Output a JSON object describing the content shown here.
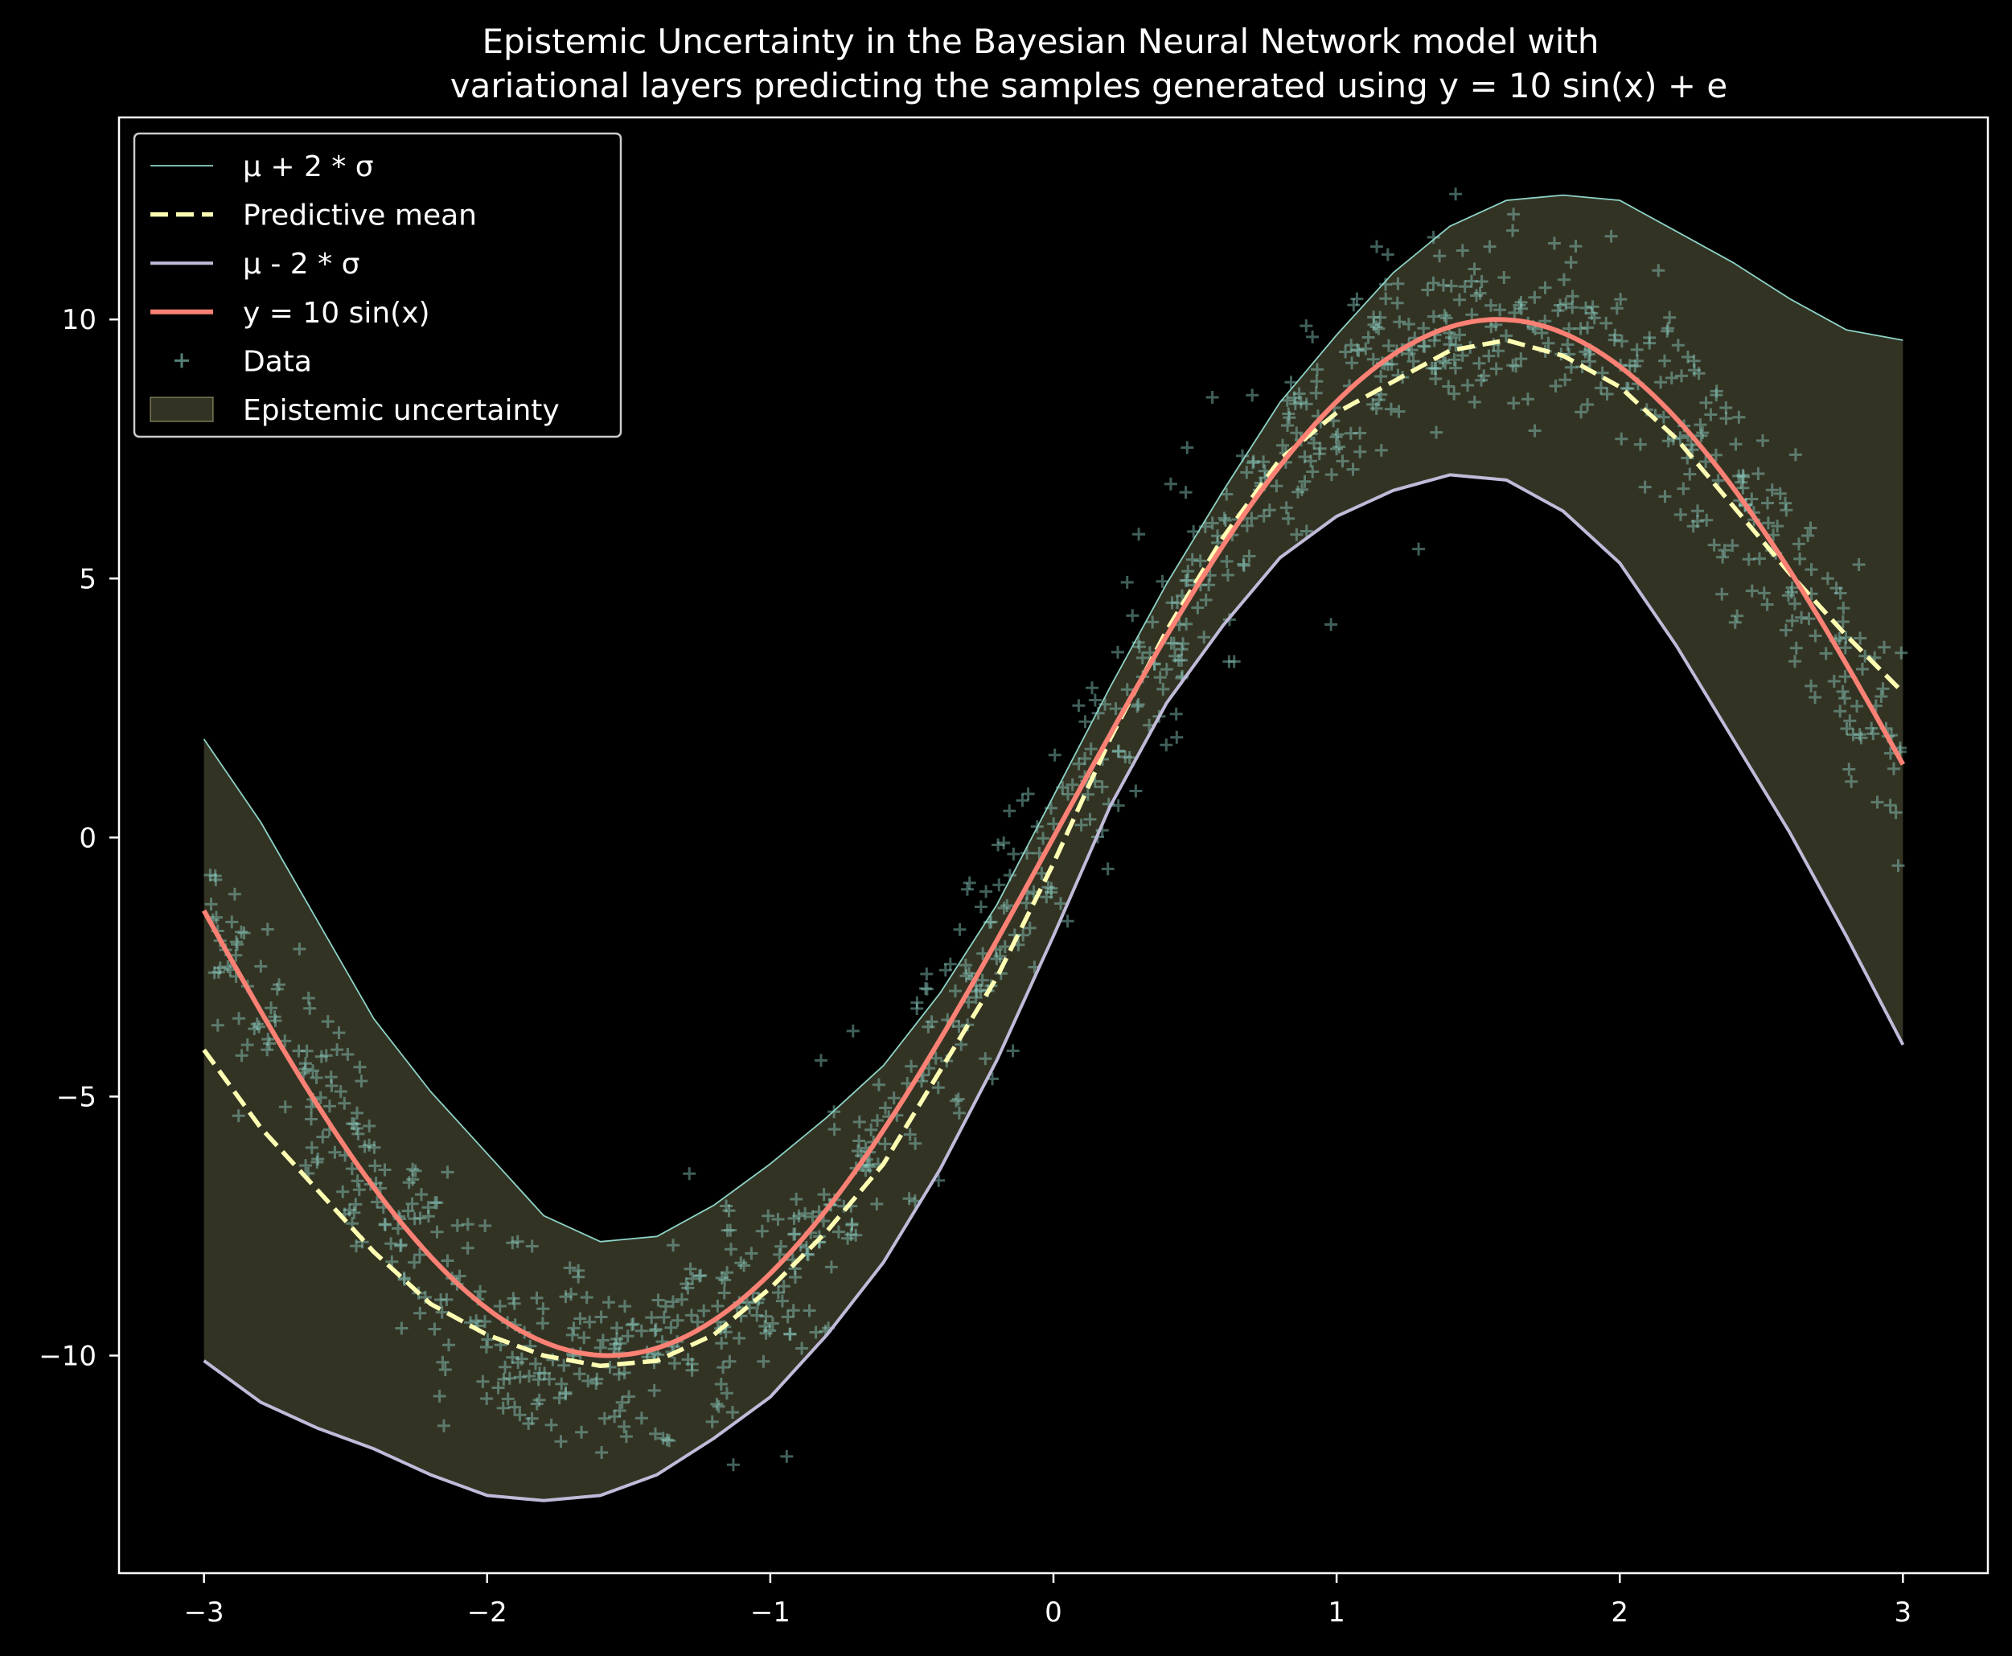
{
  "chart_data": {
    "type": "line",
    "title_lines": [
      "Epistemic Uncertainty in the Bayesian Neural Network model with",
      "variational layers predicting the samples generated using y = 10 sin(x) + e"
    ],
    "xlabel": "",
    "ylabel": "",
    "xlim": [
      -3.3,
      3.3
    ],
    "ylim": [
      -14.2,
      13.9
    ],
    "x_ticks": [
      -3,
      -2,
      -1,
      0,
      1,
      2,
      3
    ],
    "x_tick_labels": [
      "−3",
      "−2",
      "−1",
      "0",
      "1",
      "2",
      "3"
    ],
    "y_ticks": [
      -10,
      -5,
      0,
      5,
      10
    ],
    "y_tick_labels": [
      "−10",
      "−5",
      "0",
      "5",
      "10"
    ],
    "grid": false,
    "legend_position": "top-left",
    "legend": [
      {
        "label": "μ + 2 * σ",
        "style": "thin-line",
        "color": "#8dd3c7"
      },
      {
        "label": "Predictive mean",
        "style": "dashed-line",
        "color": "#feffb3"
      },
      {
        "label": "μ - 2 * σ",
        "style": "line",
        "color": "#bfbbd9"
      },
      {
        "label": "y = 10 sin(x)",
        "style": "thick-line",
        "color": "#fa8174"
      },
      {
        "label": "Data",
        "style": "marker-plus",
        "color": "#8dd3c7"
      },
      {
        "label": "Epistemic uncertainty",
        "style": "patch",
        "color": "#feffb3"
      }
    ],
    "x": [
      -3.0,
      -2.8,
      -2.6,
      -2.4,
      -2.2,
      -2.0,
      -1.8,
      -1.6,
      -1.4,
      -1.2,
      -1.0,
      -0.8,
      -0.6,
      -0.4,
      -0.2,
      0.0,
      0.2,
      0.4,
      0.6,
      0.8,
      1.0,
      1.2,
      1.4,
      1.6,
      1.8,
      2.0,
      2.2,
      2.4,
      2.6,
      2.8,
      3.0
    ],
    "series": [
      {
        "name": "μ + 2 * σ",
        "color": "#8dd3c7",
        "values": [
          1.9,
          0.3,
          -1.6,
          -3.5,
          -4.9,
          -6.1,
          -7.3,
          -7.8,
          -7.7,
          -7.1,
          -6.3,
          -5.4,
          -4.4,
          -3.0,
          -1.3,
          0.8,
          2.9,
          4.9,
          6.7,
          8.4,
          9.7,
          10.9,
          11.8,
          12.3,
          12.4,
          12.3,
          11.7,
          11.1,
          10.4,
          9.8,
          9.6
        ]
      },
      {
        "name": "Predictive mean",
        "color": "#feffb3",
        "values": [
          -4.1,
          -5.6,
          -6.8,
          -8.0,
          -9.0,
          -9.6,
          -10.0,
          -10.2,
          -10.1,
          -9.6,
          -8.7,
          -7.6,
          -6.3,
          -4.5,
          -2.7,
          -0.5,
          1.9,
          4.0,
          5.8,
          7.3,
          8.2,
          8.8,
          9.4,
          9.6,
          9.3,
          8.7,
          7.7,
          6.4,
          5.1,
          3.9,
          2.8
        ]
      },
      {
        "name": "μ - 2 * σ",
        "color": "#bfbbd9",
        "values": [
          -10.1,
          -10.9,
          -11.4,
          -11.8,
          -12.3,
          -12.7,
          -12.8,
          -12.7,
          -12.3,
          -11.6,
          -10.8,
          -9.6,
          -8.2,
          -6.4,
          -4.3,
          -1.9,
          0.6,
          2.6,
          4.1,
          5.4,
          6.2,
          6.7,
          7.0,
          6.9,
          6.3,
          5.3,
          3.7,
          1.9,
          0.1,
          -1.9,
          -4.0
        ]
      },
      {
        "name": "y = 10 sin(x)",
        "color": "#fa8174",
        "function": "10*sin(x)",
        "values": [
          -1.41,
          -3.35,
          -5.16,
          -6.75,
          -8.09,
          -9.09,
          -9.74,
          -10.0,
          -9.85,
          -9.32,
          -8.41,
          -7.17,
          -5.65,
          -3.89,
          -1.99,
          0.0,
          1.99,
          3.89,
          5.65,
          7.17,
          8.41,
          9.32,
          9.85,
          10.0,
          9.74,
          9.09,
          8.08,
          6.75,
          5.16,
          3.35,
          1.41
        ]
      }
    ],
    "scatter": {
      "name": "Data",
      "marker": "+",
      "color": "#8dd3c7",
      "generator": "y = 10 sin(x) + e",
      "count": 1000,
      "x_range": [
        -3,
        3
      ],
      "noise_sd": 1.0
    },
    "band": {
      "name": "Epistemic uncertainty",
      "between": [
        "μ - 2 * σ",
        "μ + 2 * σ"
      ],
      "color": "#feffb3",
      "opacity": 0.2
    }
  }
}
